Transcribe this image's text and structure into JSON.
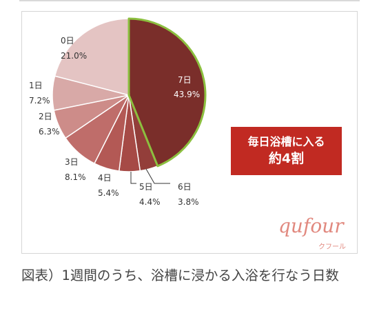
{
  "chart_data": {
    "type": "pie",
    "slices": [
      {
        "label": "7日",
        "value": 43.9,
        "value_text": "43.9%",
        "color": "#7a2e2a"
      },
      {
        "label": "6日",
        "value": 3.8,
        "value_text": "3.8%",
        "color": "#933e3a"
      },
      {
        "label": "5日",
        "value": 4.4,
        "value_text": "4.4%",
        "color": "#a64a46"
      },
      {
        "label": "4日",
        "value": 5.4,
        "value_text": "5.4%",
        "color": "#b35955"
      },
      {
        "label": "3日",
        "value": 8.1,
        "value_text": "8.1%",
        "color": "#bf6d6a"
      },
      {
        "label": "2日",
        "value": 6.3,
        "value_text": "6.3%",
        "color": "#cd8c89"
      },
      {
        "label": "1日",
        "value": 7.2,
        "value_text": "7.2%",
        "color": "#d8a9a7"
      },
      {
        "label": "0日",
        "value": 21.0,
        "value_text": "21.0%",
        "color": "#e4c4c3"
      }
    ],
    "highlight_color": "#8cbf3f",
    "highlight_slice": "7日"
  },
  "callout": {
    "line1": "毎日浴槽に入る",
    "line2": "約4割",
    "color": "#c12a22"
  },
  "logo": {
    "word": "qufour",
    "kana": "クフール"
  },
  "caption": "図表）1週間のうち、浴槽に浸かる入浴を行なう日数"
}
